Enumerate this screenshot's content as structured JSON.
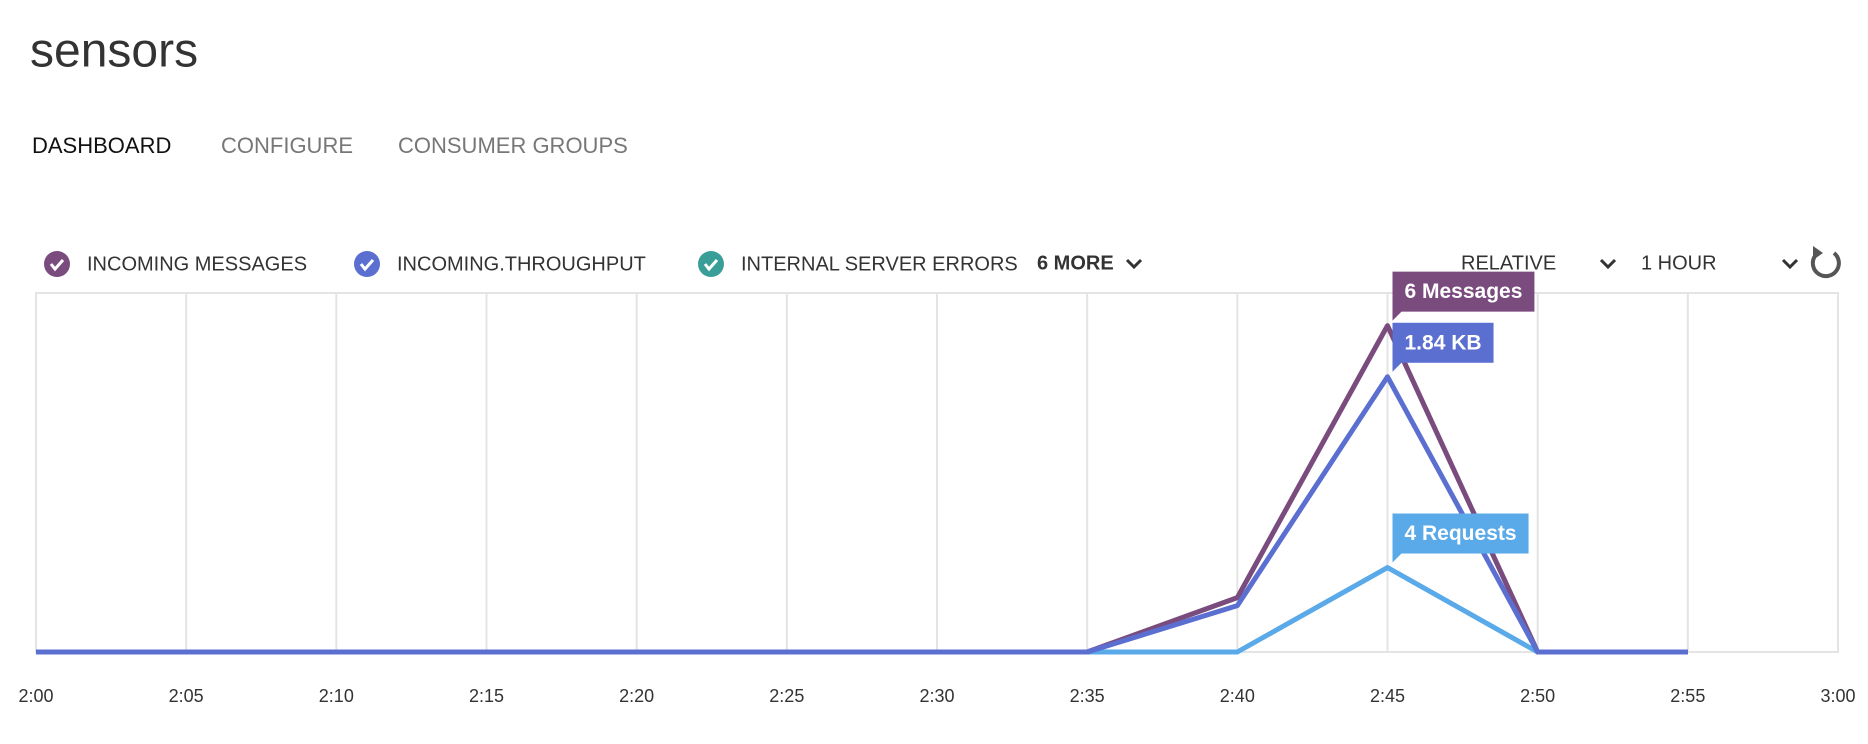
{
  "header": {
    "title": "sensors"
  },
  "tabs": [
    "DASHBOARD",
    "CONFIGURE",
    "CONSUMER GROUPS"
  ],
  "controls": {
    "more": "6 MORE",
    "mode": "RELATIVE",
    "range": "1 HOUR"
  },
  "chart_data": {
    "type": "line",
    "categories": [
      "2:00",
      "2:05",
      "2:10",
      "2:15",
      "2:20",
      "2:25",
      "2:30",
      "2:35",
      "2:40",
      "2:45",
      "2:50",
      "2:55",
      "3:00"
    ],
    "grid": true,
    "series": [
      {
        "name": "INCOMING MESSAGES",
        "color": "#7a4b7d",
        "ylim": [
          0,
          6.6
        ],
        "values": [
          0,
          0,
          0,
          0,
          0,
          0,
          0,
          0,
          1,
          6,
          0,
          0,
          null
        ],
        "value_labels": [
          null,
          null,
          null,
          null,
          null,
          null,
          null,
          null,
          null,
          "6 Messages",
          null,
          null,
          null
        ]
      },
      {
        "name": "INCOMING.THROUGHPUT",
        "color": "#5b6fd1",
        "ylim": [
          0,
          2.4
        ],
        "values": [
          0,
          0,
          0,
          0,
          0,
          0,
          0,
          0,
          0.31,
          1.84,
          0,
          0,
          null
        ],
        "value_labels": [
          null,
          null,
          null,
          null,
          null,
          null,
          null,
          null,
          null,
          "1.84 KB",
          null,
          null,
          null
        ]
      },
      {
        "color": "#5aa9e8",
        "ylim": [
          0,
          17
        ],
        "values": [
          0,
          0,
          0,
          0,
          0,
          0,
          0,
          0,
          0,
          4,
          0,
          0,
          null
        ],
        "value_labels": [
          null,
          null,
          null,
          null,
          null,
          null,
          null,
          null,
          null,
          "4 Requests",
          null,
          null,
          null
        ]
      }
    ],
    "legend_extra": [
      {
        "name": "INTERNAL SERVER ERRORS",
        "color": "#3a9e98"
      }
    ]
  }
}
